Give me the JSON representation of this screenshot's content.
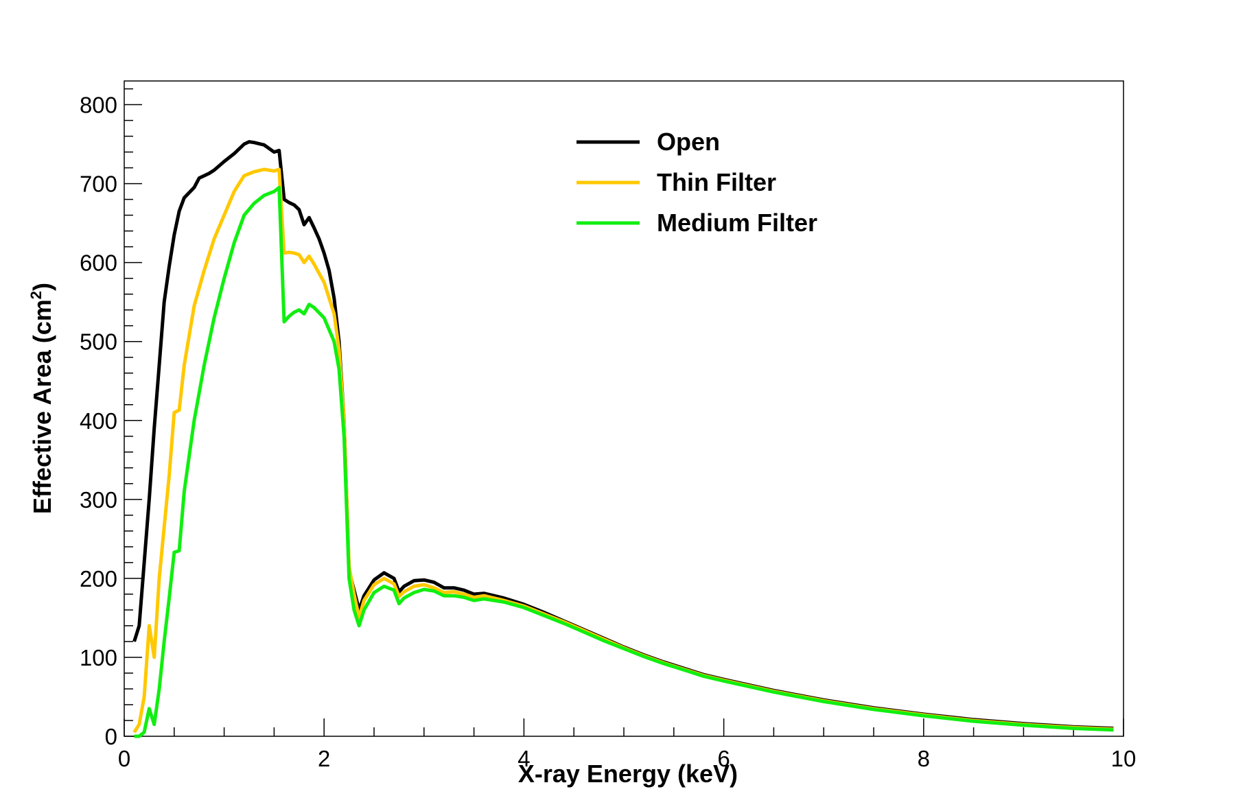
{
  "chart_data": {
    "type": "line",
    "title": "",
    "xlabel": "X-ray Energy (keV)",
    "ylabel_main": "Effective Area (cm",
    "ylabel_sup": "2",
    "ylabel_close": ")",
    "xlim": [
      0,
      10
    ],
    "ylim": [
      0,
      800
    ],
    "x_ticks": [
      {
        "value": 0,
        "label": "0"
      },
      {
        "value": 2,
        "label": "2"
      },
      {
        "value": 4,
        "label": "4"
      },
      {
        "value": 6,
        "label": "6"
      },
      {
        "value": 8,
        "label": "8"
      },
      {
        "value": 10,
        "label": "10"
      }
    ],
    "y_ticks": [
      {
        "value": 0,
        "label": "0"
      },
      {
        "value": 100,
        "label": "100"
      },
      {
        "value": 200,
        "label": "200"
      },
      {
        "value": 300,
        "label": "300"
      },
      {
        "value": 400,
        "label": "400"
      },
      {
        "value": 500,
        "label": "500"
      },
      {
        "value": 600,
        "label": "600"
      },
      {
        "value": 700,
        "label": "700"
      },
      {
        "value": 800,
        "label": "800"
      }
    ],
    "legend_position": "top-center",
    "grid": false,
    "series": [
      {
        "name": "Open",
        "color": "#000000",
        "points": [
          [
            0.1,
            120
          ],
          [
            0.15,
            140
          ],
          [
            0.2,
            220
          ],
          [
            0.25,
            300
          ],
          [
            0.3,
            390
          ],
          [
            0.35,
            470
          ],
          [
            0.4,
            550
          ],
          [
            0.45,
            595
          ],
          [
            0.5,
            635
          ],
          [
            0.55,
            665
          ],
          [
            0.6,
            682
          ],
          [
            0.7,
            695
          ],
          [
            0.75,
            707
          ],
          [
            0.8,
            710
          ],
          [
            0.85,
            713
          ],
          [
            0.9,
            717
          ],
          [
            1.0,
            728
          ],
          [
            1.1,
            738
          ],
          [
            1.2,
            750
          ],
          [
            1.25,
            753
          ],
          [
            1.3,
            752
          ],
          [
            1.4,
            749
          ],
          [
            1.5,
            740
          ],
          [
            1.55,
            742
          ],
          [
            1.6,
            680
          ],
          [
            1.65,
            676
          ],
          [
            1.7,
            673
          ],
          [
            1.75,
            667
          ],
          [
            1.8,
            648
          ],
          [
            1.85,
            657
          ],
          [
            1.9,
            644
          ],
          [
            1.95,
            630
          ],
          [
            2.0,
            612
          ],
          [
            2.05,
            590
          ],
          [
            2.1,
            555
          ],
          [
            2.15,
            500
          ],
          [
            2.2,
            400
          ],
          [
            2.25,
            210
          ],
          [
            2.3,
            185
          ],
          [
            2.35,
            160
          ],
          [
            2.4,
            178
          ],
          [
            2.5,
            198
          ],
          [
            2.6,
            207
          ],
          [
            2.7,
            200
          ],
          [
            2.75,
            183
          ],
          [
            2.8,
            190
          ],
          [
            2.9,
            197
          ],
          [
            3.0,
            198
          ],
          [
            3.1,
            195
          ],
          [
            3.2,
            188
          ],
          [
            3.3,
            188
          ],
          [
            3.4,
            185
          ],
          [
            3.5,
            180
          ],
          [
            3.6,
            181
          ],
          [
            3.8,
            175
          ],
          [
            4.0,
            167
          ],
          [
            4.2,
            157
          ],
          [
            4.4,
            146
          ],
          [
            4.6,
            135
          ],
          [
            4.8,
            124
          ],
          [
            5.0,
            113
          ],
          [
            5.2,
            103
          ],
          [
            5.4,
            94
          ],
          [
            5.6,
            86
          ],
          [
            5.8,
            78
          ],
          [
            6.0,
            72
          ],
          [
            6.5,
            58
          ],
          [
            7.0,
            46
          ],
          [
            7.5,
            36
          ],
          [
            8.0,
            28
          ],
          [
            8.5,
            21
          ],
          [
            9.0,
            16
          ],
          [
            9.5,
            12
          ],
          [
            9.9,
            10
          ]
        ]
      },
      {
        "name": "Thin Filter",
        "color": "#ffc800",
        "points": [
          [
            0.1,
            5
          ],
          [
            0.15,
            15
          ],
          [
            0.2,
            50
          ],
          [
            0.25,
            140
          ],
          [
            0.3,
            100
          ],
          [
            0.35,
            200
          ],
          [
            0.4,
            265
          ],
          [
            0.45,
            330
          ],
          [
            0.5,
            410
          ],
          [
            0.55,
            413
          ],
          [
            0.6,
            470
          ],
          [
            0.7,
            545
          ],
          [
            0.8,
            590
          ],
          [
            0.9,
            630
          ],
          [
            1.0,
            660
          ],
          [
            1.1,
            690
          ],
          [
            1.2,
            710
          ],
          [
            1.3,
            715
          ],
          [
            1.4,
            718
          ],
          [
            1.5,
            716
          ],
          [
            1.55,
            718
          ],
          [
            1.6,
            612
          ],
          [
            1.65,
            613
          ],
          [
            1.7,
            612
          ],
          [
            1.75,
            610
          ],
          [
            1.8,
            600
          ],
          [
            1.85,
            608
          ],
          [
            1.9,
            598
          ],
          [
            2.0,
            575
          ],
          [
            2.1,
            535
          ],
          [
            2.15,
            490
          ],
          [
            2.2,
            400
          ],
          [
            2.25,
            215
          ],
          [
            2.3,
            180
          ],
          [
            2.35,
            150
          ],
          [
            2.4,
            172
          ],
          [
            2.5,
            192
          ],
          [
            2.6,
            200
          ],
          [
            2.7,
            193
          ],
          [
            2.75,
            177
          ],
          [
            2.8,
            183
          ],
          [
            2.9,
            190
          ],
          [
            3.0,
            192
          ],
          [
            3.1,
            188
          ],
          [
            3.2,
            182
          ],
          [
            3.3,
            183
          ],
          [
            3.4,
            180
          ],
          [
            3.5,
            176
          ],
          [
            3.6,
            178
          ],
          [
            3.8,
            172
          ],
          [
            4.0,
            165
          ],
          [
            4.2,
            155
          ],
          [
            4.4,
            145
          ],
          [
            4.6,
            134
          ],
          [
            4.8,
            123
          ],
          [
            5.0,
            112
          ],
          [
            5.2,
            102
          ],
          [
            5.4,
            93
          ],
          [
            5.6,
            85
          ],
          [
            5.8,
            77
          ],
          [
            6.0,
            71
          ],
          [
            6.5,
            57
          ],
          [
            7.0,
            45
          ],
          [
            7.5,
            35
          ],
          [
            8.0,
            27
          ],
          [
            8.5,
            20
          ],
          [
            9.0,
            15
          ],
          [
            9.5,
            11
          ],
          [
            9.9,
            9
          ]
        ]
      },
      {
        "name": "Medium Filter",
        "color": "#11ee11",
        "points": [
          [
            0.1,
            0
          ],
          [
            0.15,
            0
          ],
          [
            0.2,
            5
          ],
          [
            0.25,
            35
          ],
          [
            0.3,
            15
          ],
          [
            0.35,
            60
          ],
          [
            0.4,
            120
          ],
          [
            0.45,
            175
          ],
          [
            0.5,
            233
          ],
          [
            0.55,
            235
          ],
          [
            0.6,
            310
          ],
          [
            0.7,
            400
          ],
          [
            0.8,
            470
          ],
          [
            0.9,
            530
          ],
          [
            1.0,
            580
          ],
          [
            1.1,
            625
          ],
          [
            1.2,
            660
          ],
          [
            1.3,
            675
          ],
          [
            1.4,
            685
          ],
          [
            1.5,
            690
          ],
          [
            1.55,
            695
          ],
          [
            1.6,
            525
          ],
          [
            1.65,
            532
          ],
          [
            1.7,
            537
          ],
          [
            1.75,
            540
          ],
          [
            1.8,
            535
          ],
          [
            1.85,
            547
          ],
          [
            1.9,
            543
          ],
          [
            2.0,
            530
          ],
          [
            2.1,
            500
          ],
          [
            2.15,
            465
          ],
          [
            2.2,
            380
          ],
          [
            2.25,
            200
          ],
          [
            2.3,
            160
          ],
          [
            2.35,
            140
          ],
          [
            2.4,
            160
          ],
          [
            2.5,
            182
          ],
          [
            2.6,
            190
          ],
          [
            2.7,
            185
          ],
          [
            2.75,
            168
          ],
          [
            2.8,
            175
          ],
          [
            2.9,
            182
          ],
          [
            3.0,
            186
          ],
          [
            3.1,
            184
          ],
          [
            3.2,
            178
          ],
          [
            3.3,
            178
          ],
          [
            3.4,
            176
          ],
          [
            3.5,
            172
          ],
          [
            3.6,
            174
          ],
          [
            3.8,
            170
          ],
          [
            4.0,
            163
          ],
          [
            4.2,
            153
          ],
          [
            4.4,
            143
          ],
          [
            4.6,
            132
          ],
          [
            4.8,
            121
          ],
          [
            5.0,
            111
          ],
          [
            5.2,
            101
          ],
          [
            5.4,
            92
          ],
          [
            5.6,
            84
          ],
          [
            5.8,
            76
          ],
          [
            6.0,
            70
          ],
          [
            6.5,
            56
          ],
          [
            7.0,
            44
          ],
          [
            7.5,
            34
          ],
          [
            8.0,
            26
          ],
          [
            8.5,
            19
          ],
          [
            9.0,
            14
          ],
          [
            9.5,
            10
          ],
          [
            9.9,
            8
          ]
        ]
      }
    ]
  }
}
